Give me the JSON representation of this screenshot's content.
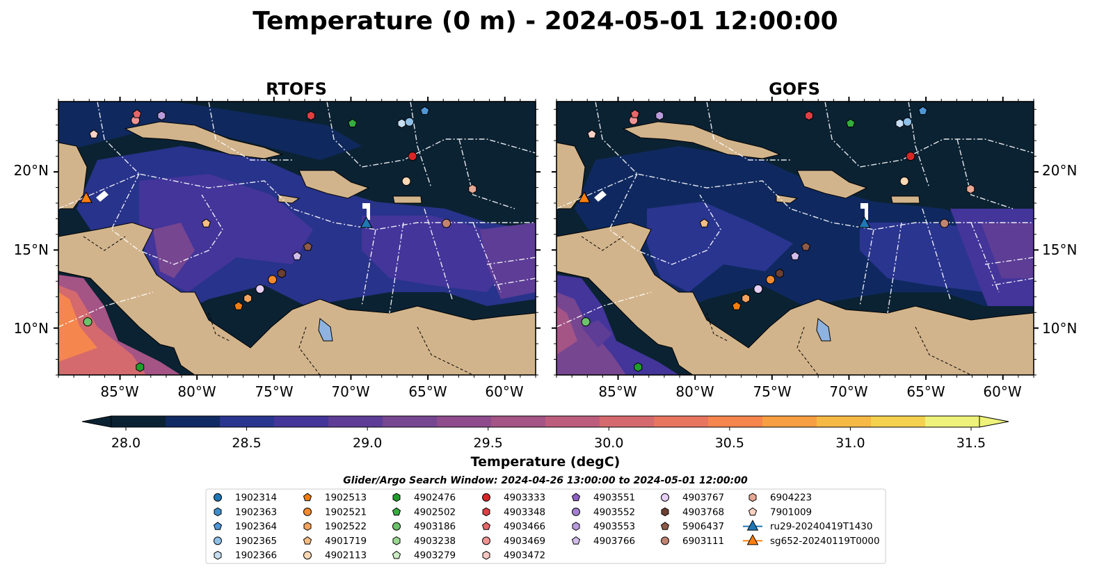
{
  "figure": {
    "title": "Temperature (0 m) - 2024-05-01 12:00:00"
  },
  "panels": [
    {
      "name": "RTOFS"
    },
    {
      "name": "GOFS"
    }
  ],
  "axes": {
    "lon_ticks": [
      "85°W",
      "80°W",
      "75°W",
      "70°W",
      "65°W",
      "60°W"
    ],
    "lat_ticks": [
      "20°N",
      "15°N",
      "10°N"
    ]
  },
  "colorbar": {
    "label": "Temperature (degC)",
    "ticks": [
      "28.0",
      "28.5",
      "29.0",
      "29.5",
      "30.0",
      "30.5",
      "31.0",
      "31.5"
    ],
    "colors": [
      "#0b2233",
      "#102a63",
      "#2a3590",
      "#43359a",
      "#5d3d96",
      "#774690",
      "#8e4c8c",
      "#a55486",
      "#bd5d7d",
      "#d46a6e",
      "#e8765f",
      "#f5864d",
      "#f89f43",
      "#f6b944",
      "#f4d24f",
      "#eef27a"
    ],
    "extend": "both"
  },
  "search_window": "Glider/Argo Search Window: 2024-04-26 13:00:00 to 2024-05-01 12:00:00",
  "legend": [
    [
      {
        "label": "1902314",
        "marker": "circle",
        "color": "#1f77b4"
      },
      {
        "label": "1902363",
        "marker": "hexagon",
        "color": "#3f8ecb"
      },
      {
        "label": "1902364",
        "marker": "pentagon",
        "color": "#4f96d6"
      },
      {
        "label": "1902365",
        "marker": "circle",
        "color": "#8ec0e8"
      },
      {
        "label": "1902366",
        "marker": "hexagon",
        "color": "#c6ddf2"
      }
    ],
    [
      {
        "label": "1902513",
        "marker": "pentagon",
        "color": "#f07d12"
      },
      {
        "label": "1902521",
        "marker": "circle",
        "color": "#f28a31"
      },
      {
        "label": "1902522",
        "marker": "hexagon",
        "color": "#f4a35d"
      },
      {
        "label": "4901719",
        "marker": "pentagon",
        "color": "#f7bd84"
      },
      {
        "label": "4902113",
        "marker": "circle",
        "color": "#fbd8b5"
      }
    ],
    [
      {
        "label": "4902476",
        "marker": "hexagon",
        "color": "#1f9e2c"
      },
      {
        "label": "4902502",
        "marker": "pentagon",
        "color": "#35ad3f"
      },
      {
        "label": "4903186",
        "marker": "circle",
        "color": "#6cc26a"
      },
      {
        "label": "4903238",
        "marker": "hexagon",
        "color": "#9ad890"
      },
      {
        "label": "4903279",
        "marker": "pentagon",
        "color": "#cdeec4"
      }
    ],
    [
      {
        "label": "4903333",
        "marker": "circle",
        "color": "#d62728"
      },
      {
        "label": "4903348",
        "marker": "hexagon",
        "color": "#dc4043"
      },
      {
        "label": "4903466",
        "marker": "pentagon",
        "color": "#e5676a"
      },
      {
        "label": "4903469",
        "marker": "circle",
        "color": "#ef9493"
      },
      {
        "label": "4903472",
        "marker": "hexagon",
        "color": "#f8c7c2"
      }
    ],
    [
      {
        "label": "4903551",
        "marker": "pentagon",
        "color": "#8e62c4"
      },
      {
        "label": "4903552",
        "marker": "circle",
        "color": "#a37fd0"
      },
      {
        "label": "4903553",
        "marker": "hexagon",
        "color": "#b99cdc"
      },
      {
        "label": "4903766",
        "marker": "pentagon",
        "color": "#d1bdeb"
      }
    ],
    [
      {
        "label": "4903767",
        "marker": "circle",
        "color": "#e6cff5"
      },
      {
        "label": "4903768",
        "marker": "hexagon",
        "color": "#6d4031"
      },
      {
        "label": "5906437",
        "marker": "pentagon",
        "color": "#8e5a48"
      },
      {
        "label": "6903111",
        "marker": "circle",
        "color": "#c08470"
      }
    ],
    [
      {
        "label": "6904223",
        "marker": "hexagon",
        "color": "#e6a795"
      },
      {
        "label": "7901009",
        "marker": "pentagon",
        "color": "#f8d2c5"
      },
      {
        "label": "ru29-20240419T1430",
        "marker": "triangle-line",
        "color": "#1f77b4"
      },
      {
        "label": "sg652-20240119T0000",
        "marker": "triangle-line",
        "color": "#ff7f0e"
      }
    ]
  ],
  "chart_data": {
    "type": "heatmap",
    "variable": "Temperature",
    "units": "degC",
    "depth": "0 m",
    "valid_time": "2024-05-01 12:00:00",
    "xlim": [
      -89,
      -58
    ],
    "ylim": [
      7,
      24.5
    ],
    "vmin": 28.0,
    "vmax": 31.5,
    "models": [
      "RTOFS",
      "GOFS"
    ],
    "gliders": [
      {
        "name": "ru29-20240419T1430",
        "lon": -69.0,
        "lat": 16.7,
        "color": "#1f77b4"
      },
      {
        "name": "sg652-20240119T0000",
        "lon": -87.2,
        "lat": 18.3,
        "color": "#ff7f0e"
      }
    ],
    "floats": [
      {
        "lon": -86.7,
        "lat": 22.4,
        "marker": "pentagon",
        "color": "#f8d2c5"
      },
      {
        "lon": -84.0,
        "lat": 23.3,
        "marker": "circle",
        "color": "#ef9493"
      },
      {
        "lon": -83.9,
        "lat": 23.7,
        "marker": "pentagon",
        "color": "#e5676a"
      },
      {
        "lon": -82.3,
        "lat": 23.6,
        "marker": "hexagon",
        "color": "#b99cdc"
      },
      {
        "lon": -72.6,
        "lat": 23.6,
        "marker": "hexagon",
        "color": "#dc4043"
      },
      {
        "lon": -69.9,
        "lat": 23.1,
        "marker": "pentagon",
        "color": "#35ad3f"
      },
      {
        "lon": -66.7,
        "lat": 23.1,
        "marker": "hexagon",
        "color": "#c6ddf2"
      },
      {
        "lon": -66.2,
        "lat": 23.2,
        "marker": "circle",
        "color": "#8ec0e8"
      },
      {
        "lon": -65.2,
        "lat": 23.9,
        "marker": "pentagon",
        "color": "#4f96d6"
      },
      {
        "lon": -66.0,
        "lat": 21.0,
        "marker": "circle",
        "color": "#d62728"
      },
      {
        "lon": -66.4,
        "lat": 19.4,
        "marker": "circle",
        "color": "#fbd8b5"
      },
      {
        "lon": -62.1,
        "lat": 18.9,
        "marker": "hexagon",
        "color": "#e6a795"
      },
      {
        "lon": -63.8,
        "lat": 16.7,
        "marker": "circle",
        "color": "#c08470"
      },
      {
        "lon": -79.4,
        "lat": 16.7,
        "marker": "pentagon",
        "color": "#f7bd84"
      },
      {
        "lon": -72.8,
        "lat": 15.2,
        "marker": "pentagon",
        "color": "#8e5a48"
      },
      {
        "lon": -73.5,
        "lat": 14.6,
        "marker": "pentagon",
        "color": "#d1bdeb"
      },
      {
        "lon": -74.5,
        "lat": 13.5,
        "marker": "hexagon",
        "color": "#6d4031"
      },
      {
        "lon": -75.1,
        "lat": 13.1,
        "marker": "circle",
        "color": "#f28a31"
      },
      {
        "lon": -75.9,
        "lat": 12.5,
        "marker": "circle",
        "color": "#e6cff5"
      },
      {
        "lon": -76.7,
        "lat": 11.9,
        "marker": "hexagon",
        "color": "#f4a35d"
      },
      {
        "lon": -77.3,
        "lat": 11.4,
        "marker": "pentagon",
        "color": "#f07d12"
      },
      {
        "lon": -87.1,
        "lat": 10.4,
        "marker": "circle",
        "color": "#6cc26a"
      },
      {
        "lon": -83.7,
        "lat": 7.5,
        "marker": "hexagon",
        "color": "#1f9e2c"
      }
    ]
  }
}
